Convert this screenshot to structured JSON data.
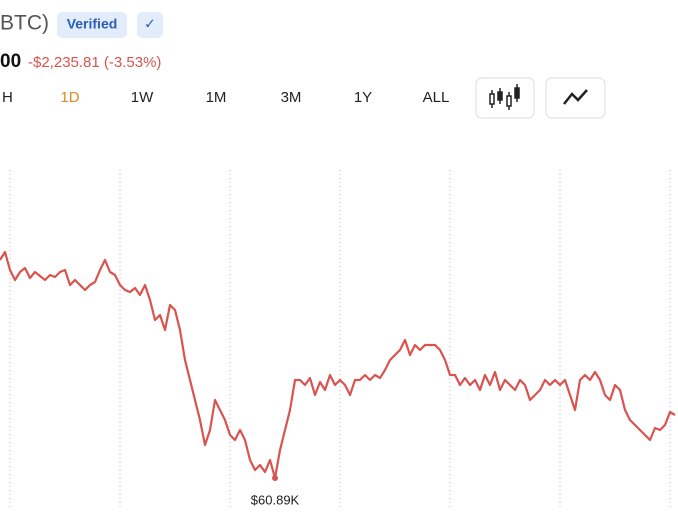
{
  "header": {
    "symbol": "BTC)",
    "badge": "Verified",
    "check": "✓",
    "price": "00",
    "change": "-$2,235.81 (-3.53%)"
  },
  "tabs": [
    "H",
    "1D",
    "1W",
    "1M",
    "3M",
    "1Y",
    "ALL"
  ],
  "chart_data": {
    "type": "line",
    "color": "#d9534f",
    "values": [
      61.544,
      61.568,
      61.514,
      61.484,
      61.508,
      61.52,
      61.49,
      61.508,
      61.496,
      61.484,
      61.499,
      61.493,
      61.508,
      61.514,
      61.469,
      61.484,
      61.469,
      61.454,
      61.469,
      61.478,
      61.514,
      61.544,
      61.508,
      61.499,
      61.469,
      61.454,
      61.448,
      61.46,
      61.439,
      61.469,
      61.424,
      61.364,
      61.379,
      61.334,
      61.409,
      61.394,
      61.334,
      61.244,
      61.184,
      61.124,
      61.064,
      60.989,
      61.034,
      61.124,
      61.094,
      61.064,
      61.019,
      61.004,
      61.034,
      61.004,
      60.944,
      60.914,
      60.929,
      60.908,
      60.944,
      60.89,
      60.974,
      61.034,
      61.094,
      61.184,
      61.184,
      61.169,
      61.19,
      61.139,
      61.178,
      61.154,
      61.199,
      61.169,
      61.184,
      61.169,
      61.139,
      61.184,
      61.184,
      61.199,
      61.184,
      61.199,
      61.19,
      61.214,
      61.244,
      61.259,
      61.274,
      61.304,
      61.259,
      61.289,
      61.274,
      61.289,
      61.289,
      61.289,
      61.274,
      61.244,
      61.199,
      61.199,
      61.169,
      61.19,
      61.169,
      61.184,
      61.154,
      61.199,
      61.169,
      61.208,
      61.154,
      61.184,
      61.169,
      61.154,
      61.184,
      61.169,
      61.124,
      61.139,
      61.154,
      61.184,
      61.169,
      61.184,
      61.169,
      61.184,
      61.139,
      61.094,
      61.184,
      61.199,
      61.184,
      61.208,
      61.184,
      61.139,
      61.124,
      61.169,
      61.154,
      61.094,
      61.064,
      61.049,
      61.034,
      61.019,
      61.004,
      61.04,
      61.034,
      61.049,
      61.088,
      61.079
    ],
    "ylim": [
      60.797,
      61.814
    ],
    "annotation": {
      "value": 60.89,
      "label": "$60.89K"
    }
  }
}
